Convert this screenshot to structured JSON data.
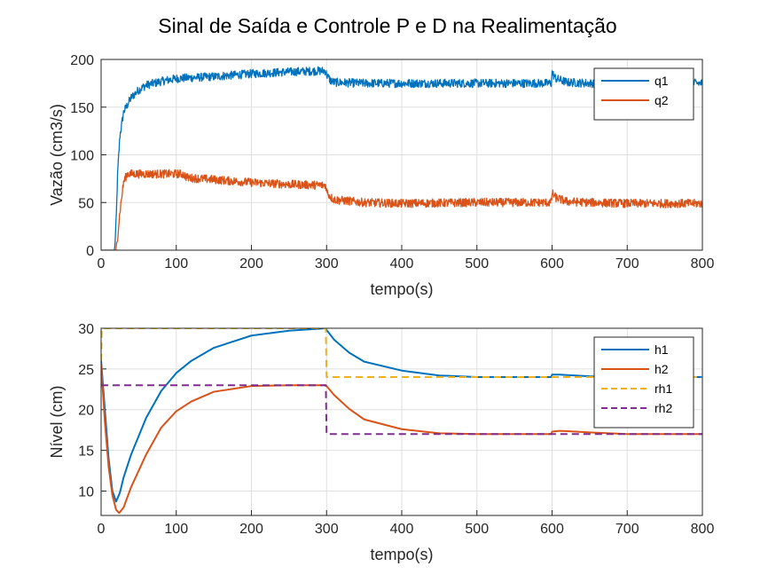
{
  "figure_title": "Sinal de Saída e Controle P e D na Realimentação",
  "chart_data": [
    {
      "type": "line",
      "title": "",
      "xlabel": "tempo(s)",
      "ylabel": "Vazão (cm3/s)",
      "xlim": [
        0,
        800
      ],
      "ylim": [
        0,
        200
      ],
      "xticks": [
        "0",
        "100",
        "200",
        "300",
        "400",
        "500",
        "600",
        "700",
        "800"
      ],
      "yticks": [
        "0",
        "50",
        "100",
        "150",
        "200"
      ],
      "grid": true,
      "legend_position": "top-right",
      "series": [
        {
          "name": "q1",
          "color": "#0072BD",
          "style": "solid",
          "noisy": true,
          "x": [
            0,
            18,
            20,
            22,
            25,
            30,
            40,
            50,
            60,
            80,
            100,
            150,
            200,
            250,
            290,
            299,
            300,
            305,
            310,
            350,
            400,
            500,
            599,
            600,
            605,
            620,
            650,
            700,
            800
          ],
          "y": [
            0,
            0,
            30,
            80,
            120,
            145,
            160,
            168,
            173,
            177,
            180,
            182,
            185,
            187,
            188,
            188,
            184,
            178,
            176,
            175,
            175,
            175,
            175,
            186,
            180,
            176,
            175,
            175,
            175
          ]
        },
        {
          "name": "q2",
          "color": "#D95319",
          "style": "solid",
          "noisy": true,
          "x": [
            0,
            20,
            22,
            25,
            30,
            35,
            108,
            110,
            115,
            150,
            200,
            250,
            299,
            300,
            305,
            310,
            350,
            400,
            500,
            599,
            600,
            605,
            620,
            650,
            700,
            800
          ],
          "y": [
            0,
            0,
            15,
            40,
            72,
            80,
            80,
            79,
            76,
            74,
            71,
            69,
            68,
            62,
            56,
            53,
            50,
            49,
            50,
            50,
            60,
            55,
            51,
            50,
            49,
            49
          ]
        }
      ]
    },
    {
      "type": "line",
      "title": "",
      "xlabel": "tempo(s)",
      "ylabel": "Nível (cm)",
      "xlim": [
        0,
        800
      ],
      "ylim": [
        7,
        30
      ],
      "xticks": [
        "0",
        "100",
        "200",
        "300",
        "400",
        "500",
        "600",
        "700",
        "800"
      ],
      "yticks": [
        "10",
        "15",
        "20",
        "25",
        "30"
      ],
      "grid": true,
      "legend_position": "top-right",
      "series": [
        {
          "name": "h1",
          "color": "#0072BD",
          "style": "solid",
          "noisy": false,
          "x": [
            0,
            5,
            10,
            15,
            20,
            25,
            30,
            40,
            60,
            80,
            100,
            120,
            150,
            200,
            250,
            299,
            300,
            310,
            330,
            350,
            400,
            450,
            500,
            599,
            600,
            610,
            650,
            700,
            800
          ],
          "y": [
            26,
            20,
            14,
            10,
            8.7,
            9.8,
            11.7,
            14.5,
            19,
            22.3,
            24.5,
            26,
            27.6,
            29.1,
            29.7,
            30,
            29.8,
            28.6,
            27,
            25.9,
            24.8,
            24.2,
            24,
            24,
            24.3,
            24.3,
            24.1,
            24,
            24
          ]
        },
        {
          "name": "h2",
          "color": "#D95319",
          "style": "solid",
          "noisy": false,
          "x": [
            0,
            5,
            10,
            15,
            20,
            24,
            30,
            40,
            60,
            80,
            100,
            120,
            150,
            200,
            250,
            299,
            300,
            310,
            330,
            350,
            400,
            450,
            500,
            599,
            600,
            610,
            650,
            700,
            800
          ],
          "y": [
            25.6,
            18.5,
            13,
            9.5,
            7.7,
            7.3,
            8,
            10.5,
            14.5,
            17.8,
            19.8,
            21,
            22.2,
            22.9,
            23,
            23,
            22.9,
            21.8,
            20.1,
            18.8,
            17.6,
            17.1,
            17,
            17,
            17.3,
            17.4,
            17.2,
            17,
            17
          ]
        },
        {
          "name": "rh1",
          "color": "#EDB120",
          "style": "dashed",
          "noisy": false,
          "x": [
            0,
            1,
            299,
            300,
            800
          ],
          "y": [
            26,
            30,
            30,
            24,
            24
          ]
        },
        {
          "name": "rh2",
          "color": "#7E2F8E",
          "style": "dashed",
          "noisy": false,
          "x": [
            0,
            299,
            300,
            800
          ],
          "y": [
            23,
            23,
            17,
            17
          ]
        }
      ]
    }
  ]
}
